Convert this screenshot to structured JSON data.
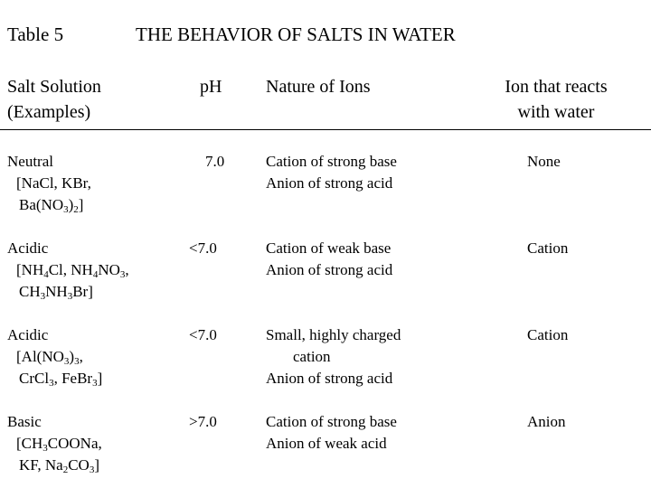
{
  "table_label": "Table 5",
  "table_title": "THE BEHAVIOR OF SALTS IN WATER",
  "headers": {
    "salt_solution": [
      "Salt Solution",
      "(Examples)"
    ],
    "ph": "pH",
    "nature": "Nature of Ions",
    "ion_reacts": [
      "Ion that reacts",
      "with water"
    ]
  },
  "rows": [
    {
      "type": "Neutral",
      "examples": [
        "[NaCl, KBr,",
        "Ba(NO3)2]"
      ],
      "ph": "7.0",
      "nature": [
        "Cation of strong base",
        "Anion of strong acid"
      ],
      "ion": "None"
    },
    {
      "type": "Acidic",
      "examples": [
        "[NH4Cl, NH4NO3,",
        "CH3NH3Br]"
      ],
      "ph": "<7.0",
      "nature": [
        "Cation of weak base",
        "Anion of strong acid"
      ],
      "ion": "Cation"
    },
    {
      "type": "Acidic",
      "examples": [
        "[Al(NO3)3,",
        "CrCl3, FeBr3]"
      ],
      "ph": "<7.0",
      "nature": [
        "Small, highly charged",
        "cation",
        "Anion of strong acid"
      ],
      "ion": "Cation"
    },
    {
      "type": "Basic",
      "examples": [
        "[CH3COONa,",
        "KF, Na2CO3]"
      ],
      "ph": ">7.0",
      "nature": [
        "Cation of strong base",
        "Anion of weak acid"
      ],
      "ion": "Anion"
    }
  ]
}
